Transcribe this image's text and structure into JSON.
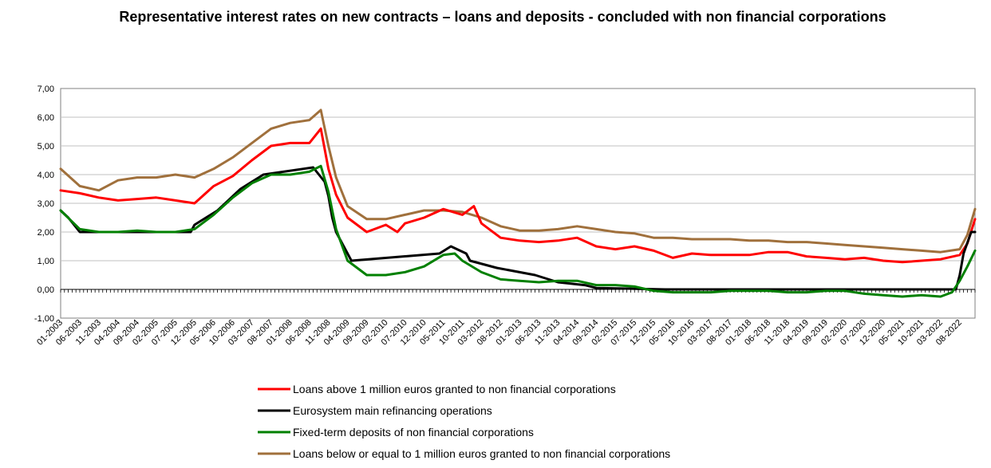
{
  "chart_data": {
    "type": "line",
    "title": "Representative interest rates on new contracts – loans and deposits - concluded with non financial corporations",
    "ylim": [
      -1,
      7
    ],
    "yticks": [
      "-1,00",
      "0,00",
      "1,00",
      "2,00",
      "3,00",
      "4,00",
      "5,00",
      "6,00",
      "7,00"
    ],
    "grid": "horizontal",
    "legend_position": "bottom",
    "x_tick_labels": [
      "01-2003",
      "06-2003",
      "11-2003",
      "04-2004",
      "09-2004",
      "02-2005",
      "07-2005",
      "12-2005",
      "05-2006",
      "10-2006",
      "03-2007",
      "08-2007",
      "01-2008",
      "06-2008",
      "11-2008",
      "04-2009",
      "09-2009",
      "02-2010",
      "07-2010",
      "12-2010",
      "05-2011",
      "10-2011",
      "03-2012",
      "08-2012",
      "01-2013",
      "06-2013",
      "11-2013",
      "04-2014",
      "09-2014",
      "02-2015",
      "07-2015",
      "12-2015",
      "05-2016",
      "10-2016",
      "03-2017",
      "08-2017",
      "01-2018",
      "06-2018",
      "11-2018",
      "04-2019",
      "09-2019",
      "02-2020",
      "07-2020",
      "12-2020",
      "05-2021",
      "10-2021",
      "03-2022",
      "08-2022"
    ],
    "x_range": [
      "01-2003",
      "12-2022"
    ],
    "series": [
      {
        "name": "Loans above 1 million euros granted to non financial corporations",
        "color": "#ff0000",
        "points": [
          [
            "01-2003",
            3.45
          ],
          [
            "06-2003",
            3.35
          ],
          [
            "11-2003",
            3.2
          ],
          [
            "04-2004",
            3.1
          ],
          [
            "09-2004",
            3.15
          ],
          [
            "02-2005",
            3.2
          ],
          [
            "07-2005",
            3.1
          ],
          [
            "12-2005",
            3.0
          ],
          [
            "05-2006",
            3.6
          ],
          [
            "10-2006",
            3.95
          ],
          [
            "03-2007",
            4.5
          ],
          [
            "08-2007",
            5.0
          ],
          [
            "01-2008",
            5.1
          ],
          [
            "06-2008",
            5.1
          ],
          [
            "09-2008",
            5.6
          ],
          [
            "11-2008",
            4.2
          ],
          [
            "01-2009",
            3.3
          ],
          [
            "04-2009",
            2.5
          ],
          [
            "09-2009",
            2.0
          ],
          [
            "02-2010",
            2.25
          ],
          [
            "05-2010",
            2.0
          ],
          [
            "07-2010",
            2.3
          ],
          [
            "12-2010",
            2.5
          ],
          [
            "05-2011",
            2.8
          ],
          [
            "10-2011",
            2.6
          ],
          [
            "01-2012",
            2.9
          ],
          [
            "03-2012",
            2.3
          ],
          [
            "08-2012",
            1.8
          ],
          [
            "01-2013",
            1.7
          ],
          [
            "06-2013",
            1.65
          ],
          [
            "11-2013",
            1.7
          ],
          [
            "04-2014",
            1.8
          ],
          [
            "09-2014",
            1.5
          ],
          [
            "02-2015",
            1.4
          ],
          [
            "07-2015",
            1.5
          ],
          [
            "12-2015",
            1.35
          ],
          [
            "05-2016",
            1.1
          ],
          [
            "10-2016",
            1.25
          ],
          [
            "03-2017",
            1.2
          ],
          [
            "08-2017",
            1.2
          ],
          [
            "01-2018",
            1.2
          ],
          [
            "06-2018",
            1.3
          ],
          [
            "11-2018",
            1.3
          ],
          [
            "04-2019",
            1.15
          ],
          [
            "09-2019",
            1.1
          ],
          [
            "02-2020",
            1.05
          ],
          [
            "07-2020",
            1.1
          ],
          [
            "12-2020",
            1.0
          ],
          [
            "05-2021",
            0.95
          ],
          [
            "10-2021",
            1.0
          ],
          [
            "03-2022",
            1.05
          ],
          [
            "08-2022",
            1.2
          ],
          [
            "10-2022",
            1.6
          ],
          [
            "12-2022",
            2.45
          ]
        ]
      },
      {
        "name": "Eurosystem main refinancing operations",
        "color": "#000000",
        "points": [
          [
            "01-2003",
            2.75
          ],
          [
            "03-2003",
            2.5
          ],
          [
            "06-2003",
            2.0
          ],
          [
            "11-2005",
            2.0
          ],
          [
            "12-2005",
            2.25
          ],
          [
            "03-2006",
            2.5
          ],
          [
            "06-2006",
            2.75
          ],
          [
            "08-2006",
            3.0
          ],
          [
            "10-2006",
            3.25
          ],
          [
            "12-2006",
            3.5
          ],
          [
            "03-2007",
            3.75
          ],
          [
            "06-2007",
            4.0
          ],
          [
            "07-2008",
            4.25
          ],
          [
            "10-2008",
            3.75
          ],
          [
            "11-2008",
            3.25
          ],
          [
            "12-2008",
            2.5
          ],
          [
            "01-2009",
            2.0
          ],
          [
            "03-2009",
            1.5
          ],
          [
            "04-2009",
            1.25
          ],
          [
            "05-2009",
            1.0
          ],
          [
            "04-2011",
            1.25
          ],
          [
            "07-2011",
            1.5
          ],
          [
            "11-2011",
            1.25
          ],
          [
            "12-2011",
            1.0
          ],
          [
            "07-2012",
            0.75
          ],
          [
            "05-2013",
            0.5
          ],
          [
            "11-2013",
            0.25
          ],
          [
            "06-2014",
            0.15
          ],
          [
            "09-2014",
            0.05
          ],
          [
            "03-2016",
            0.0
          ],
          [
            "07-2022",
            0.0
          ],
          [
            "08-2022",
            0.5
          ],
          [
            "09-2022",
            1.25
          ],
          [
            "11-2022",
            2.0
          ],
          [
            "12-2022",
            2.0
          ]
        ]
      },
      {
        "name": "Fixed-term deposits of non financial corporations",
        "color": "#008000",
        "points": [
          [
            "01-2003",
            2.75
          ],
          [
            "06-2003",
            2.1
          ],
          [
            "11-2003",
            2.0
          ],
          [
            "04-2004",
            2.0
          ],
          [
            "09-2004",
            2.05
          ],
          [
            "02-2005",
            2.0
          ],
          [
            "07-2005",
            2.0
          ],
          [
            "12-2005",
            2.1
          ],
          [
            "05-2006",
            2.6
          ],
          [
            "10-2006",
            3.2
          ],
          [
            "03-2007",
            3.7
          ],
          [
            "08-2007",
            4.0
          ],
          [
            "01-2008",
            4.0
          ],
          [
            "06-2008",
            4.1
          ],
          [
            "09-2008",
            4.3
          ],
          [
            "11-2008",
            3.4
          ],
          [
            "01-2009",
            2.1
          ],
          [
            "04-2009",
            1.0
          ],
          [
            "09-2009",
            0.5
          ],
          [
            "02-2010",
            0.5
          ],
          [
            "07-2010",
            0.6
          ],
          [
            "12-2010",
            0.8
          ],
          [
            "05-2011",
            1.2
          ],
          [
            "08-2011",
            1.25
          ],
          [
            "10-2011",
            1.0
          ],
          [
            "03-2012",
            0.6
          ],
          [
            "08-2012",
            0.35
          ],
          [
            "01-2013",
            0.3
          ],
          [
            "06-2013",
            0.25
          ],
          [
            "11-2013",
            0.3
          ],
          [
            "04-2014",
            0.3
          ],
          [
            "09-2014",
            0.15
          ],
          [
            "02-2015",
            0.15
          ],
          [
            "07-2015",
            0.1
          ],
          [
            "12-2015",
            -0.05
          ],
          [
            "05-2016",
            -0.1
          ],
          [
            "10-2016",
            -0.1
          ],
          [
            "03-2017",
            -0.1
          ],
          [
            "08-2017",
            -0.05
          ],
          [
            "01-2018",
            -0.05
          ],
          [
            "06-2018",
            -0.05
          ],
          [
            "11-2018",
            -0.1
          ],
          [
            "04-2019",
            -0.1
          ],
          [
            "09-2019",
            -0.05
          ],
          [
            "02-2020",
            -0.05
          ],
          [
            "07-2020",
            -0.15
          ],
          [
            "12-2020",
            -0.2
          ],
          [
            "05-2021",
            -0.25
          ],
          [
            "10-2021",
            -0.2
          ],
          [
            "03-2022",
            -0.25
          ],
          [
            "06-2022",
            -0.1
          ],
          [
            "08-2022",
            0.3
          ],
          [
            "10-2022",
            0.8
          ],
          [
            "12-2022",
            1.35
          ]
        ]
      },
      {
        "name": "Loans below or equal to 1 million euros granted to non financial corporations",
        "color": "#a0703c",
        "points": [
          [
            "01-2003",
            4.2
          ],
          [
            "06-2003",
            3.6
          ],
          [
            "11-2003",
            3.45
          ],
          [
            "04-2004",
            3.8
          ],
          [
            "09-2004",
            3.9
          ],
          [
            "02-2005",
            3.9
          ],
          [
            "07-2005",
            4.0
          ],
          [
            "12-2005",
            3.9
          ],
          [
            "05-2006",
            4.2
          ],
          [
            "10-2006",
            4.6
          ],
          [
            "03-2007",
            5.1
          ],
          [
            "08-2007",
            5.6
          ],
          [
            "01-2008",
            5.8
          ],
          [
            "06-2008",
            5.9
          ],
          [
            "09-2008",
            6.25
          ],
          [
            "11-2008",
            5.0
          ],
          [
            "01-2009",
            3.9
          ],
          [
            "04-2009",
            2.9
          ],
          [
            "09-2009",
            2.45
          ],
          [
            "02-2010",
            2.45
          ],
          [
            "07-2010",
            2.6
          ],
          [
            "12-2010",
            2.75
          ],
          [
            "05-2011",
            2.75
          ],
          [
            "10-2011",
            2.7
          ],
          [
            "03-2012",
            2.5
          ],
          [
            "08-2012",
            2.2
          ],
          [
            "01-2013",
            2.05
          ],
          [
            "06-2013",
            2.05
          ],
          [
            "11-2013",
            2.1
          ],
          [
            "04-2014",
            2.2
          ],
          [
            "09-2014",
            2.1
          ],
          [
            "02-2015",
            2.0
          ],
          [
            "07-2015",
            1.95
          ],
          [
            "12-2015",
            1.8
          ],
          [
            "05-2016",
            1.8
          ],
          [
            "10-2016",
            1.75
          ],
          [
            "03-2017",
            1.75
          ],
          [
            "08-2017",
            1.75
          ],
          [
            "01-2018",
            1.7
          ],
          [
            "06-2018",
            1.7
          ],
          [
            "11-2018",
            1.65
          ],
          [
            "04-2019",
            1.65
          ],
          [
            "09-2019",
            1.6
          ],
          [
            "02-2020",
            1.55
          ],
          [
            "07-2020",
            1.5
          ],
          [
            "12-2020",
            1.45
          ],
          [
            "05-2021",
            1.4
          ],
          [
            "10-2021",
            1.35
          ],
          [
            "03-2022",
            1.3
          ],
          [
            "08-2022",
            1.4
          ],
          [
            "10-2022",
            1.9
          ],
          [
            "12-2022",
            2.8
          ]
        ]
      }
    ]
  }
}
